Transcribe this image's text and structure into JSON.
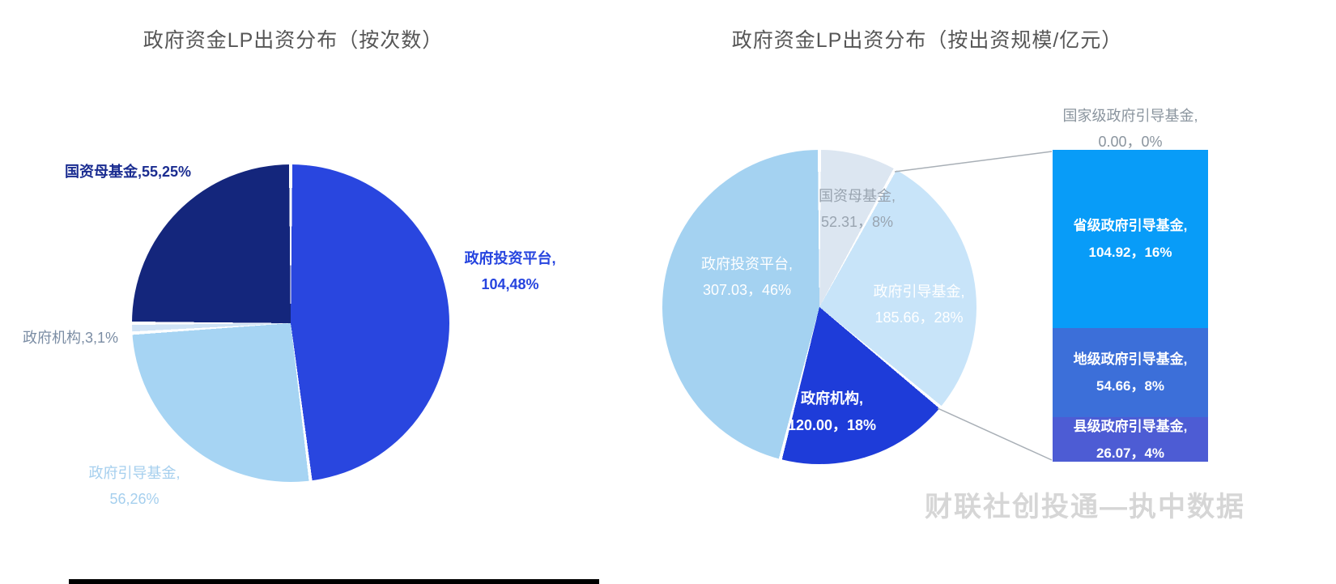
{
  "left_chart": {
    "title": "政府资金LP出资分布（按次数）",
    "labels": {
      "guozimujijin": "国资母基金,55,25%",
      "touzipingtai_line1": "政府投资平台,",
      "touzipingtai_line2": "104,48%",
      "jigou": "政府机构,3,1%",
      "yindaojijin_line1": "政府引导基金,",
      "yindaojijin_line2": "56,26%"
    }
  },
  "right_chart": {
    "title": "政府资金LP出资分布（按出资规模/亿元）",
    "labels": {
      "guozimujijin_line1": "国资母基金,",
      "guozimujijin_line2": "52.31，8%",
      "touzipingtai_line1": "政府投资平台,",
      "touzipingtai_line2": "307.03，46%",
      "yindaojijin_line1": "政府引导基金,",
      "yindaojijin_line2": "185.66，28%",
      "jigou_line1": "政府机构,",
      "jigou_line2": "120.00，18%"
    },
    "breakdown_bar": {
      "top_label_line1": "国家级政府引导基金,",
      "top_label_line2": "0.00，0%",
      "segments": [
        {
          "line1": "省级政府引导基金,",
          "line2": "104.92，16%"
        },
        {
          "line1": "地级政府引导基金,",
          "line2": "54.66，8%"
        },
        {
          "line1": "县级政府引导基金,",
          "line2": "26.07，4%"
        }
      ]
    }
  },
  "watermark": "财联社创投通—执中数据",
  "chart_data": [
    {
      "type": "pie",
      "title": "政府资金LP出资分布（按次数）",
      "slices": [
        {
          "label": "政府投资平台",
          "value": 104,
          "percent": 48,
          "color": "#2946df"
        },
        {
          "label": "政府引导基金",
          "value": 56,
          "percent": 26,
          "color": "#a6d4f3"
        },
        {
          "label": "政府机构",
          "value": 3,
          "percent": 1,
          "color": "#cfe3f6"
        },
        {
          "label": "国资母基金",
          "value": 55,
          "percent": 25,
          "color": "#14267c"
        }
      ]
    },
    {
      "type": "pie",
      "title": "政府资金LP出资分布（按出资规模/亿元）",
      "slices": [
        {
          "label": "国资母基金",
          "value": 52.31,
          "percent": 8,
          "color": "#dce6f1"
        },
        {
          "label": "政府引导基金",
          "value": 185.66,
          "percent": 28,
          "color": "#c8e4f9"
        },
        {
          "label": "政府机构",
          "value": 120.0,
          "percent": 18,
          "color": "#1e3cd9"
        },
        {
          "label": "政府投资平台",
          "value": 307.03,
          "percent": 46,
          "color": "#a4d2f1"
        }
      ]
    },
    {
      "type": "bar",
      "stacked": true,
      "breakdown_of": "政府引导基金",
      "segments": [
        {
          "label": "国家级政府引导基金",
          "value": 0.0,
          "percent": 0,
          "color": null
        },
        {
          "label": "省级政府引导基金",
          "value": 104.92,
          "percent": 16,
          "color": "#089cf8"
        },
        {
          "label": "地级政府引导基金",
          "value": 54.66,
          "percent": 8,
          "color": "#3c6fd9"
        },
        {
          "label": "县级政府引导基金",
          "value": 26.07,
          "percent": 4,
          "color": "#4d5cd4"
        }
      ]
    }
  ]
}
